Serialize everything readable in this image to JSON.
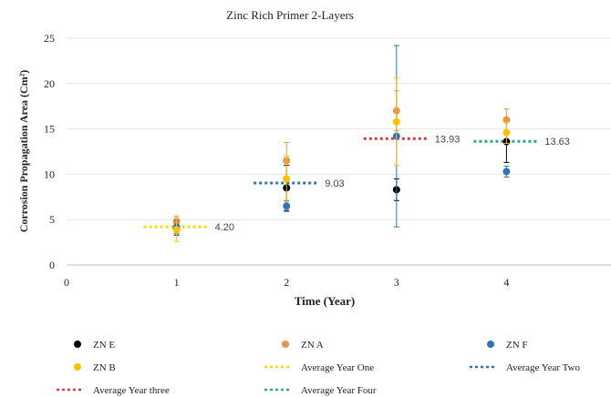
{
  "chart_data": {
    "type": "scatter",
    "title": "Zinc Rich Primer 2-Layers",
    "xlabel": "Time (Year)",
    "ylabel": "Corrosion Propagation Area (Cm²)",
    "xlim": [
      0,
      4.5
    ],
    "ylim": [
      0,
      25
    ],
    "x_ticks": [
      0,
      1,
      2,
      3,
      4
    ],
    "y_ticks": [
      0,
      5,
      10,
      15,
      20,
      25
    ],
    "grid": true,
    "legend_position": "bottom",
    "series": [
      {
        "name": "ZN E",
        "color": "#000000",
        "kind": "point",
        "points": [
          {
            "x": 1,
            "y": 4.0,
            "err": 0.7
          },
          {
            "x": 2,
            "y": 8.5,
            "err": 2.5
          },
          {
            "x": 3,
            "y": 8.3,
            "err": 1.2
          },
          {
            "x": 4,
            "y": 13.6,
            "err": 2.3
          }
        ]
      },
      {
        "name": "ZN A",
        "color": "#e8944a",
        "kind": "point",
        "points": [
          {
            "x": 1,
            "y": 4.8,
            "err": 0.6
          },
          {
            "x": 2,
            "y": 11.5,
            "err": 2.0
          },
          {
            "x": 3,
            "y": 17.0,
            "err": 2.2
          },
          {
            "x": 4,
            "y": 16.0,
            "err": 1.2
          }
        ]
      },
      {
        "name": "ZN F",
        "color": "#2e75b6",
        "kind": "point",
        "points": [
          {
            "x": 1,
            "y": 4.2,
            "err": 0.7
          },
          {
            "x": 2,
            "y": 6.5,
            "err": 0.6
          },
          {
            "x": 3,
            "y": 14.2,
            "err": 10.0
          },
          {
            "x": 4,
            "y": 10.3,
            "err": 0.6
          }
        ]
      },
      {
        "name": "ZN B",
        "color": "#ffc000",
        "kind": "point",
        "points": [
          {
            "x": 1,
            "y": 3.9,
            "err": 1.3
          },
          {
            "x": 2,
            "y": 9.5,
            "err": 2.5
          },
          {
            "x": 3,
            "y": 15.8,
            "err": 4.8
          },
          {
            "x": 4,
            "y": 14.6,
            "err": 1.2
          }
        ]
      },
      {
        "name": "Average Year One",
        "color": "#ffd700",
        "kind": "avg",
        "x": 1,
        "y": 4.2,
        "label": "4.20"
      },
      {
        "name": "Average Year Two",
        "color": "#2e75b6",
        "kind": "avg",
        "x": 2,
        "y": 9.03,
        "label": "9.03"
      },
      {
        "name": "Average Year three",
        "color": "#e23a3a",
        "kind": "avg",
        "x": 3,
        "y": 13.93,
        "label": "13.93"
      },
      {
        "name": "Average Year Four",
        "color": "#26a69a",
        "kind": "avg",
        "x": 4,
        "y": 13.63,
        "label": "13.63"
      }
    ]
  }
}
